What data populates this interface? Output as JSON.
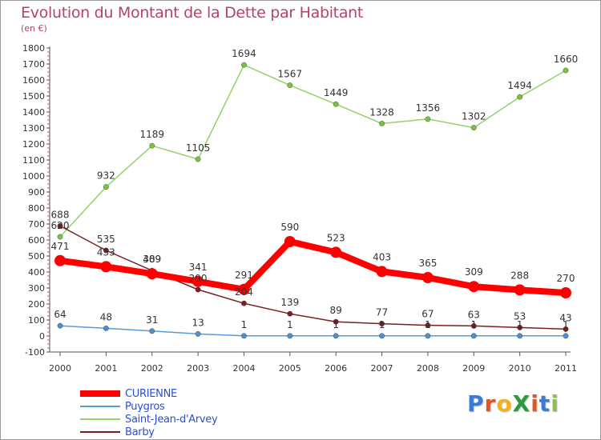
{
  "title": "Evolution du Montant de la Dette par Habitant",
  "unit": "(en €)",
  "logo": {
    "text": "ProXiti",
    "letters": [
      "P",
      "r",
      "o",
      "X",
      "i",
      "t",
      "i"
    ],
    "colors": [
      "#3a7bd5",
      "#e8541e",
      "#f2b21b",
      "#2a9d3a",
      "#e8541e",
      "#3a7bd5",
      "#8bc34a"
    ]
  },
  "chart_data": {
    "type": "line",
    "title": "Evolution du Montant de la Dette par Habitant",
    "ylabel": "(en €)",
    "categories": [
      "2000",
      "2001",
      "2002",
      "2003",
      "2004",
      "2005",
      "2006",
      "2007",
      "2008",
      "2009",
      "2010",
      "2011"
    ],
    "ylim": [
      -100,
      1800
    ],
    "yticks": [
      -100,
      0,
      100,
      200,
      300,
      400,
      500,
      600,
      700,
      800,
      900,
      1000,
      1100,
      1200,
      1300,
      1400,
      1500,
      1600,
      1700,
      1800
    ],
    "grid": false,
    "legend_position": "bottom-left",
    "series": [
      {
        "name": "CURIENNE",
        "color": "#ff0000",
        "values": [
          471,
          433,
          389,
          341,
          291,
          590,
          523,
          403,
          365,
          309,
          288,
          270
        ]
      },
      {
        "name": "Puygros",
        "color": "#5b9bd5",
        "values": [
          64,
          48,
          31,
          13,
          1,
          1,
          1,
          1,
          1,
          1,
          1,
          1
        ]
      },
      {
        "name": "Saint-Jean-d'Arvey",
        "color": "#8fd46a",
        "values": [
          620,
          932,
          1189,
          1105,
          1694,
          1567,
          1449,
          1328,
          1356,
          1302,
          1494,
          1660
        ]
      },
      {
        "name": "Barby",
        "color": "#7a1f1f",
        "values": [
          688,
          535,
          409,
          290,
          204,
          139,
          89,
          77,
          67,
          63,
          53,
          43
        ]
      }
    ]
  }
}
